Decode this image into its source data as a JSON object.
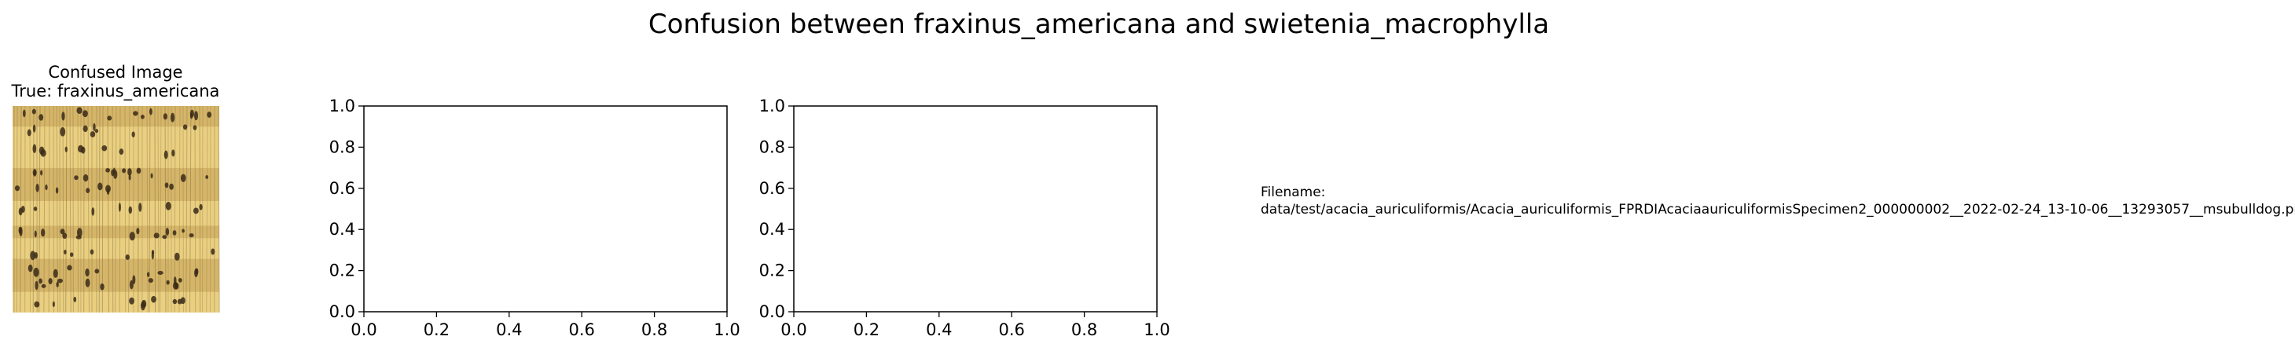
{
  "figure": {
    "suptitle": "Confusion between fraxinus_americana and swietenia_macrophylla"
  },
  "image_panel": {
    "title_line1": "Confused Image",
    "title_line2": "True: fraxinus_americana",
    "image_description": "wood-grain"
  },
  "filename_panel": {
    "label": "Filename:",
    "path": "data/test/acacia_auriculiformis/Acacia_auriculiformis_FPRDIAcaciaauriculiformisSpecimen2_000000002__2022-02-24_13-10-06__13293057__msubulldog.png"
  },
  "chart_data": [
    {
      "type": "line",
      "series": [],
      "title": "",
      "xlabel": "",
      "ylabel": "",
      "xlim": [
        0.0,
        1.0
      ],
      "ylim": [
        0.0,
        1.0
      ],
      "xticks": [
        "0.0",
        "0.2",
        "0.4",
        "0.6",
        "0.8",
        "1.0"
      ],
      "yticks": [
        "0.0",
        "0.2",
        "0.4",
        "0.6",
        "0.8",
        "1.0"
      ],
      "grid": false
    },
    {
      "type": "line",
      "series": [],
      "title": "",
      "xlabel": "",
      "ylabel": "",
      "xlim": [
        0.0,
        1.0
      ],
      "ylim": [
        0.0,
        1.0
      ],
      "xticks": [
        "0.0",
        "0.2",
        "0.4",
        "0.6",
        "0.8",
        "1.0"
      ],
      "yticks": [
        "0.0",
        "0.2",
        "0.4",
        "0.6",
        "0.8",
        "1.0"
      ],
      "grid": false
    }
  ],
  "colors": {
    "axis": "#000000",
    "background": "#ffffff",
    "wood_light": "#e9cf7f",
    "wood_mid": "#cfae62",
    "wood_dark": "#8a7650",
    "pore": "#3a2a18"
  }
}
